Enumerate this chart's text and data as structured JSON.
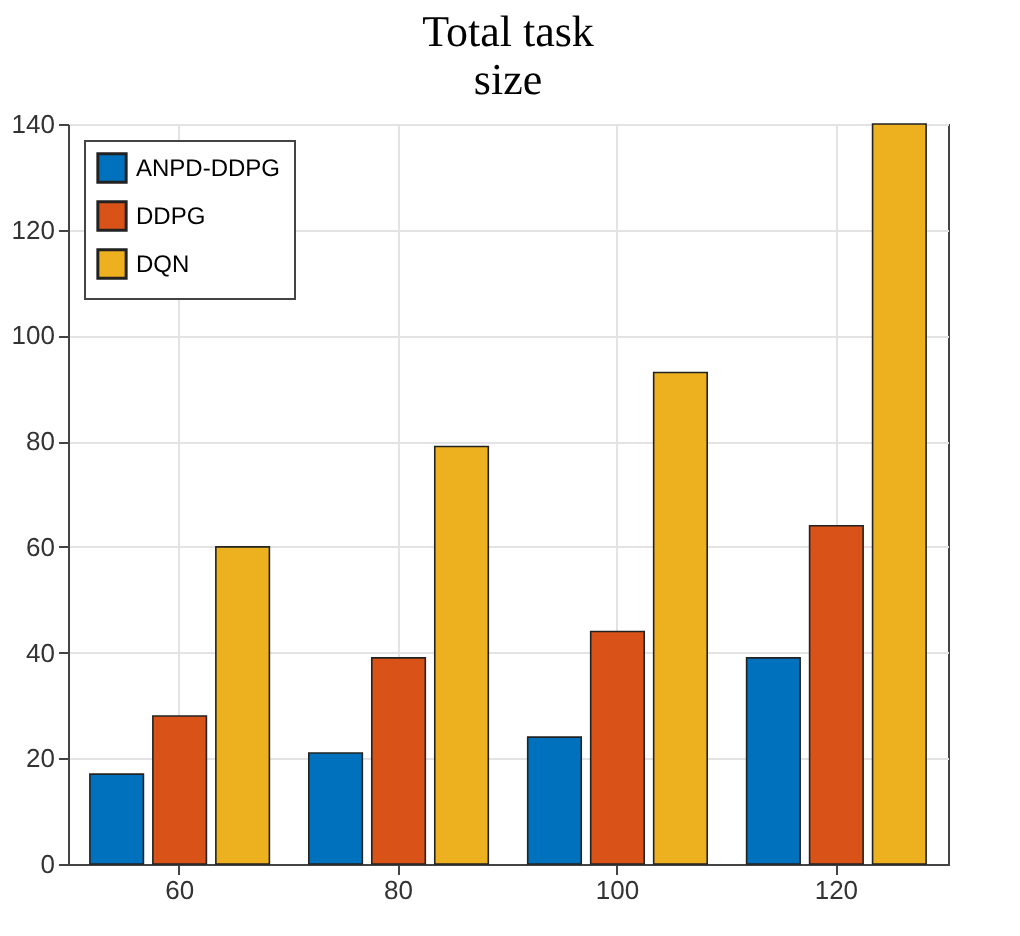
{
  "chart_data": {
    "type": "bar",
    "title": [
      "Total task",
      "size"
    ],
    "categories": [
      "60",
      "80",
      "100",
      "120"
    ],
    "series": [
      {
        "name": "ANPD-DDPG",
        "color": "#0072bd",
        "values": [
          17,
          21,
          24,
          39
        ]
      },
      {
        "name": "DDPG",
        "color": "#d95319",
        "values": [
          28,
          39,
          44,
          64
        ]
      },
      {
        "name": "DQN",
        "color": "#edb120",
        "values": [
          60,
          79,
          93,
          140
        ]
      }
    ],
    "ylim": [
      0,
      140
    ],
    "yticks": [
      0,
      20,
      40,
      60,
      80,
      100,
      120,
      140
    ],
    "grid": true,
    "legend": "top left"
  }
}
